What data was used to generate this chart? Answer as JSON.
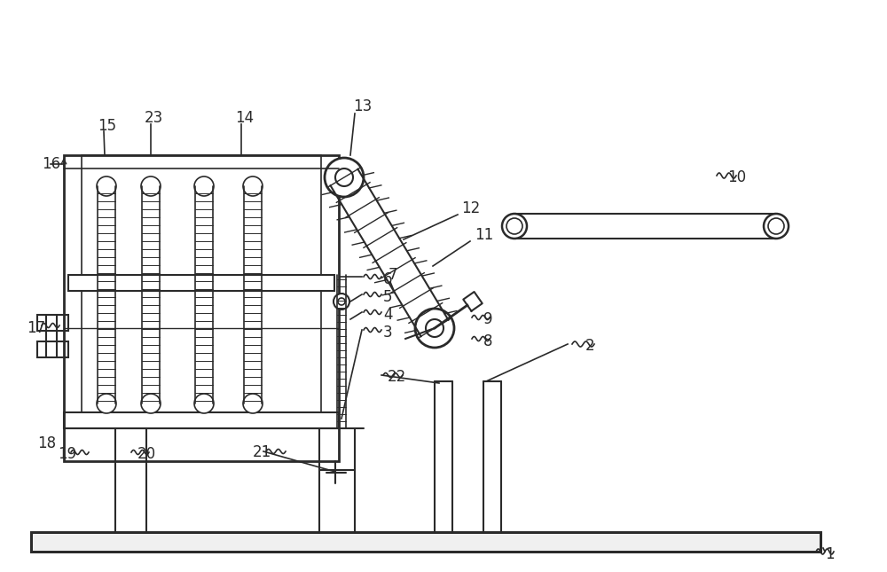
{
  "bg_color": "#ffffff",
  "line_color": "#2a2a2a",
  "label_fontsize": 12,
  "fig_width": 10.0,
  "fig_height": 6.45,
  "dpi": 100
}
